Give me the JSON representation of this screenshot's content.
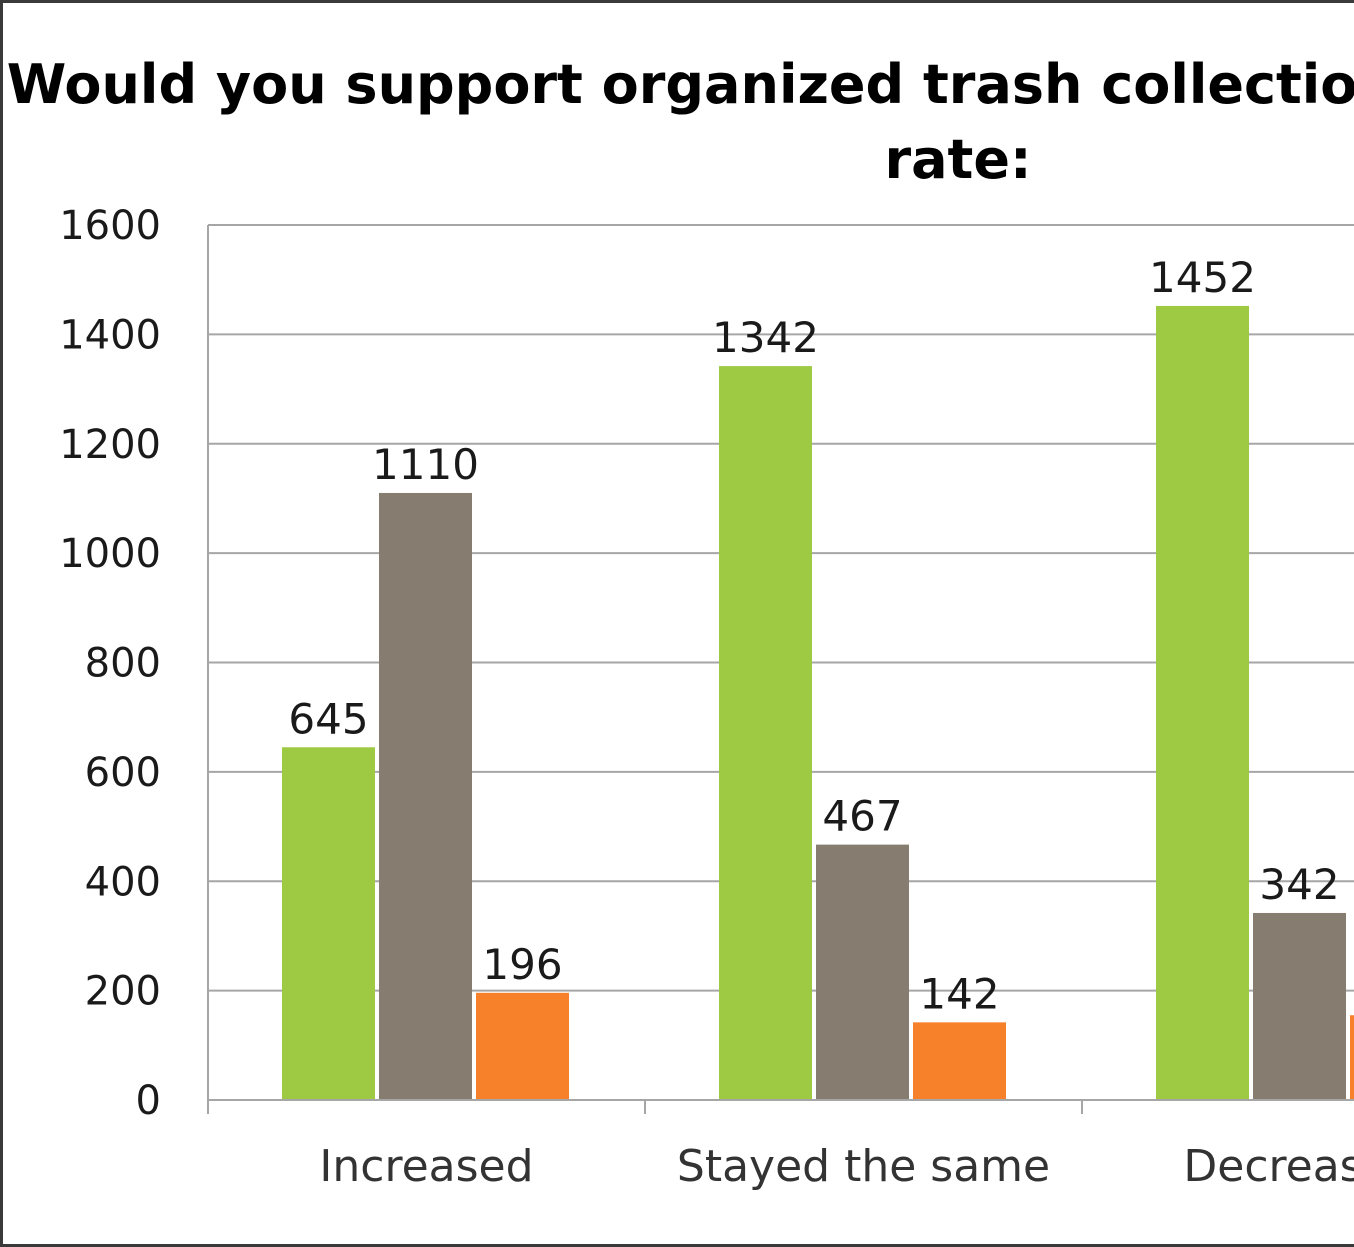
{
  "chart_data": {
    "type": "bar",
    "title": "Would you support organized trash collection city-wide if your rate:",
    "categories": [
      "Increased",
      "Stayed the same",
      "Decreased"
    ],
    "series": [
      {
        "values": [
          645,
          1342,
          1452
        ],
        "color": "#9dc943"
      },
      {
        "values": [
          1110,
          467,
          342
        ],
        "color": "#877c70"
      },
      {
        "values": [
          196,
          142,
          155
        ],
        "color": "#f7802b"
      }
    ],
    "ylim": [
      0,
      1600
    ],
    "yticks": [
      0,
      200,
      400,
      600,
      800,
      1000,
      1200,
      1400,
      1600
    ],
    "grid": true,
    "xlabel": "",
    "ylabel": ""
  }
}
